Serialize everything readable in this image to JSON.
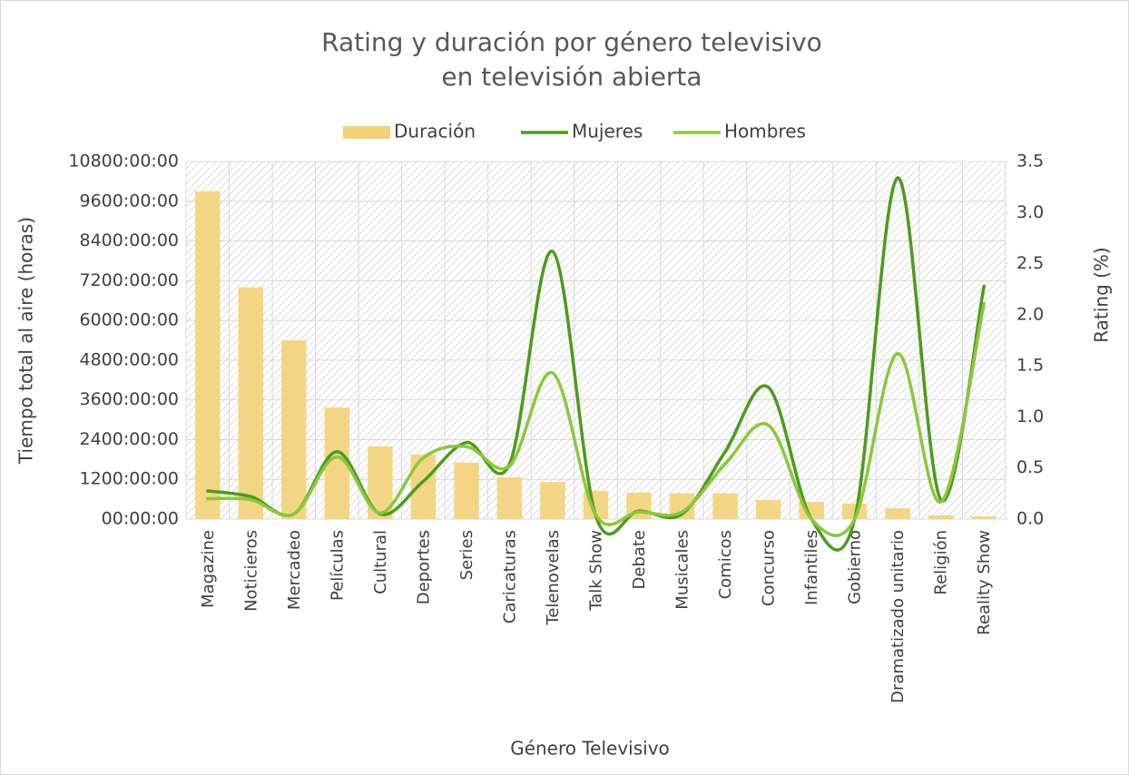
{
  "chart_data": {
    "type": "bar_line",
    "title": [
      "Rating y duración por género televisivo",
      "en televisión abierta"
    ],
    "x_label": "Género Televisivo",
    "y_label": "Tiempo total al aire (horas)",
    "y2_label": "Rating (%)",
    "categories": [
      "Magazine",
      "Noticieros",
      "Mercadeo",
      "Películas",
      "Cultural",
      "Deportes",
      "Series",
      "Caricaturas",
      "Telenovelas",
      "Talk Show",
      "Debate",
      "Musicales",
      "Comicos",
      "Concurso",
      "Infantiles",
      "Gobierno",
      "Dramatizado unitario",
      "Religión",
      "Reality Show"
    ],
    "series": [
      {
        "name": "Duración",
        "type": "bar",
        "color": "#f2d37a",
        "values": [
          9900,
          7000,
          5400,
          3370,
          2200,
          1950,
          1700,
          1260,
          1120,
          850,
          800,
          780,
          780,
          575,
          520,
          470,
          330,
          110,
          80
        ]
      },
      {
        "name": "Mujeres",
        "type": "line",
        "axis": "y2",
        "color": "#4e9a1e",
        "values": [
          0.275,
          0.22,
          0.05,
          0.66,
          0.05,
          0.37,
          0.75,
          0.54,
          2.62,
          0.03,
          0.08,
          0.05,
          0.66,
          1.29,
          0,
          0,
          3.34,
          0.19,
          2.28
        ]
      },
      {
        "name": "Hombres",
        "type": "line",
        "axis": "y2",
        "color": "#8dc63f",
        "values": [
          0.2,
          0.19,
          0.05,
          0.61,
          0.06,
          0.6,
          0.71,
          0.52,
          1.43,
          0.04,
          0.07,
          0.07,
          0.54,
          0.92,
          0,
          0,
          1.62,
          0.17,
          2.11
        ]
      }
    ],
    "ylim": [
      0,
      10800
    ],
    "yticks": [
      {
        "value": 0,
        "label": "00:00:00"
      },
      {
        "value": 1200,
        "label": "1200:00:00"
      },
      {
        "value": 2400,
        "label": "2400:00:00"
      },
      {
        "value": 3600,
        "label": "3600:00:00"
      },
      {
        "value": 4800,
        "label": "4800:00:00"
      },
      {
        "value": 6000,
        "label": "6000:00:00"
      },
      {
        "value": 7200,
        "label": "7200:00:00"
      },
      {
        "value": 8400,
        "label": "8400:00:00"
      },
      {
        "value": 9600,
        "label": "9600:00:00"
      },
      {
        "value": 10800,
        "label": "10800:00:00"
      }
    ],
    "y2lim": [
      0,
      3.5
    ],
    "y2ticks": [
      {
        "value": 0,
        "label": "0.0"
      },
      0.5,
      {
        "value": 1,
        "label": "1.0"
      },
      1.5,
      {
        "value": 2,
        "label": "2.0"
      },
      2.5,
      {
        "value": 3,
        "label": "3.0"
      },
      3.5
    ],
    "grid": true,
    "legend": "top"
  }
}
